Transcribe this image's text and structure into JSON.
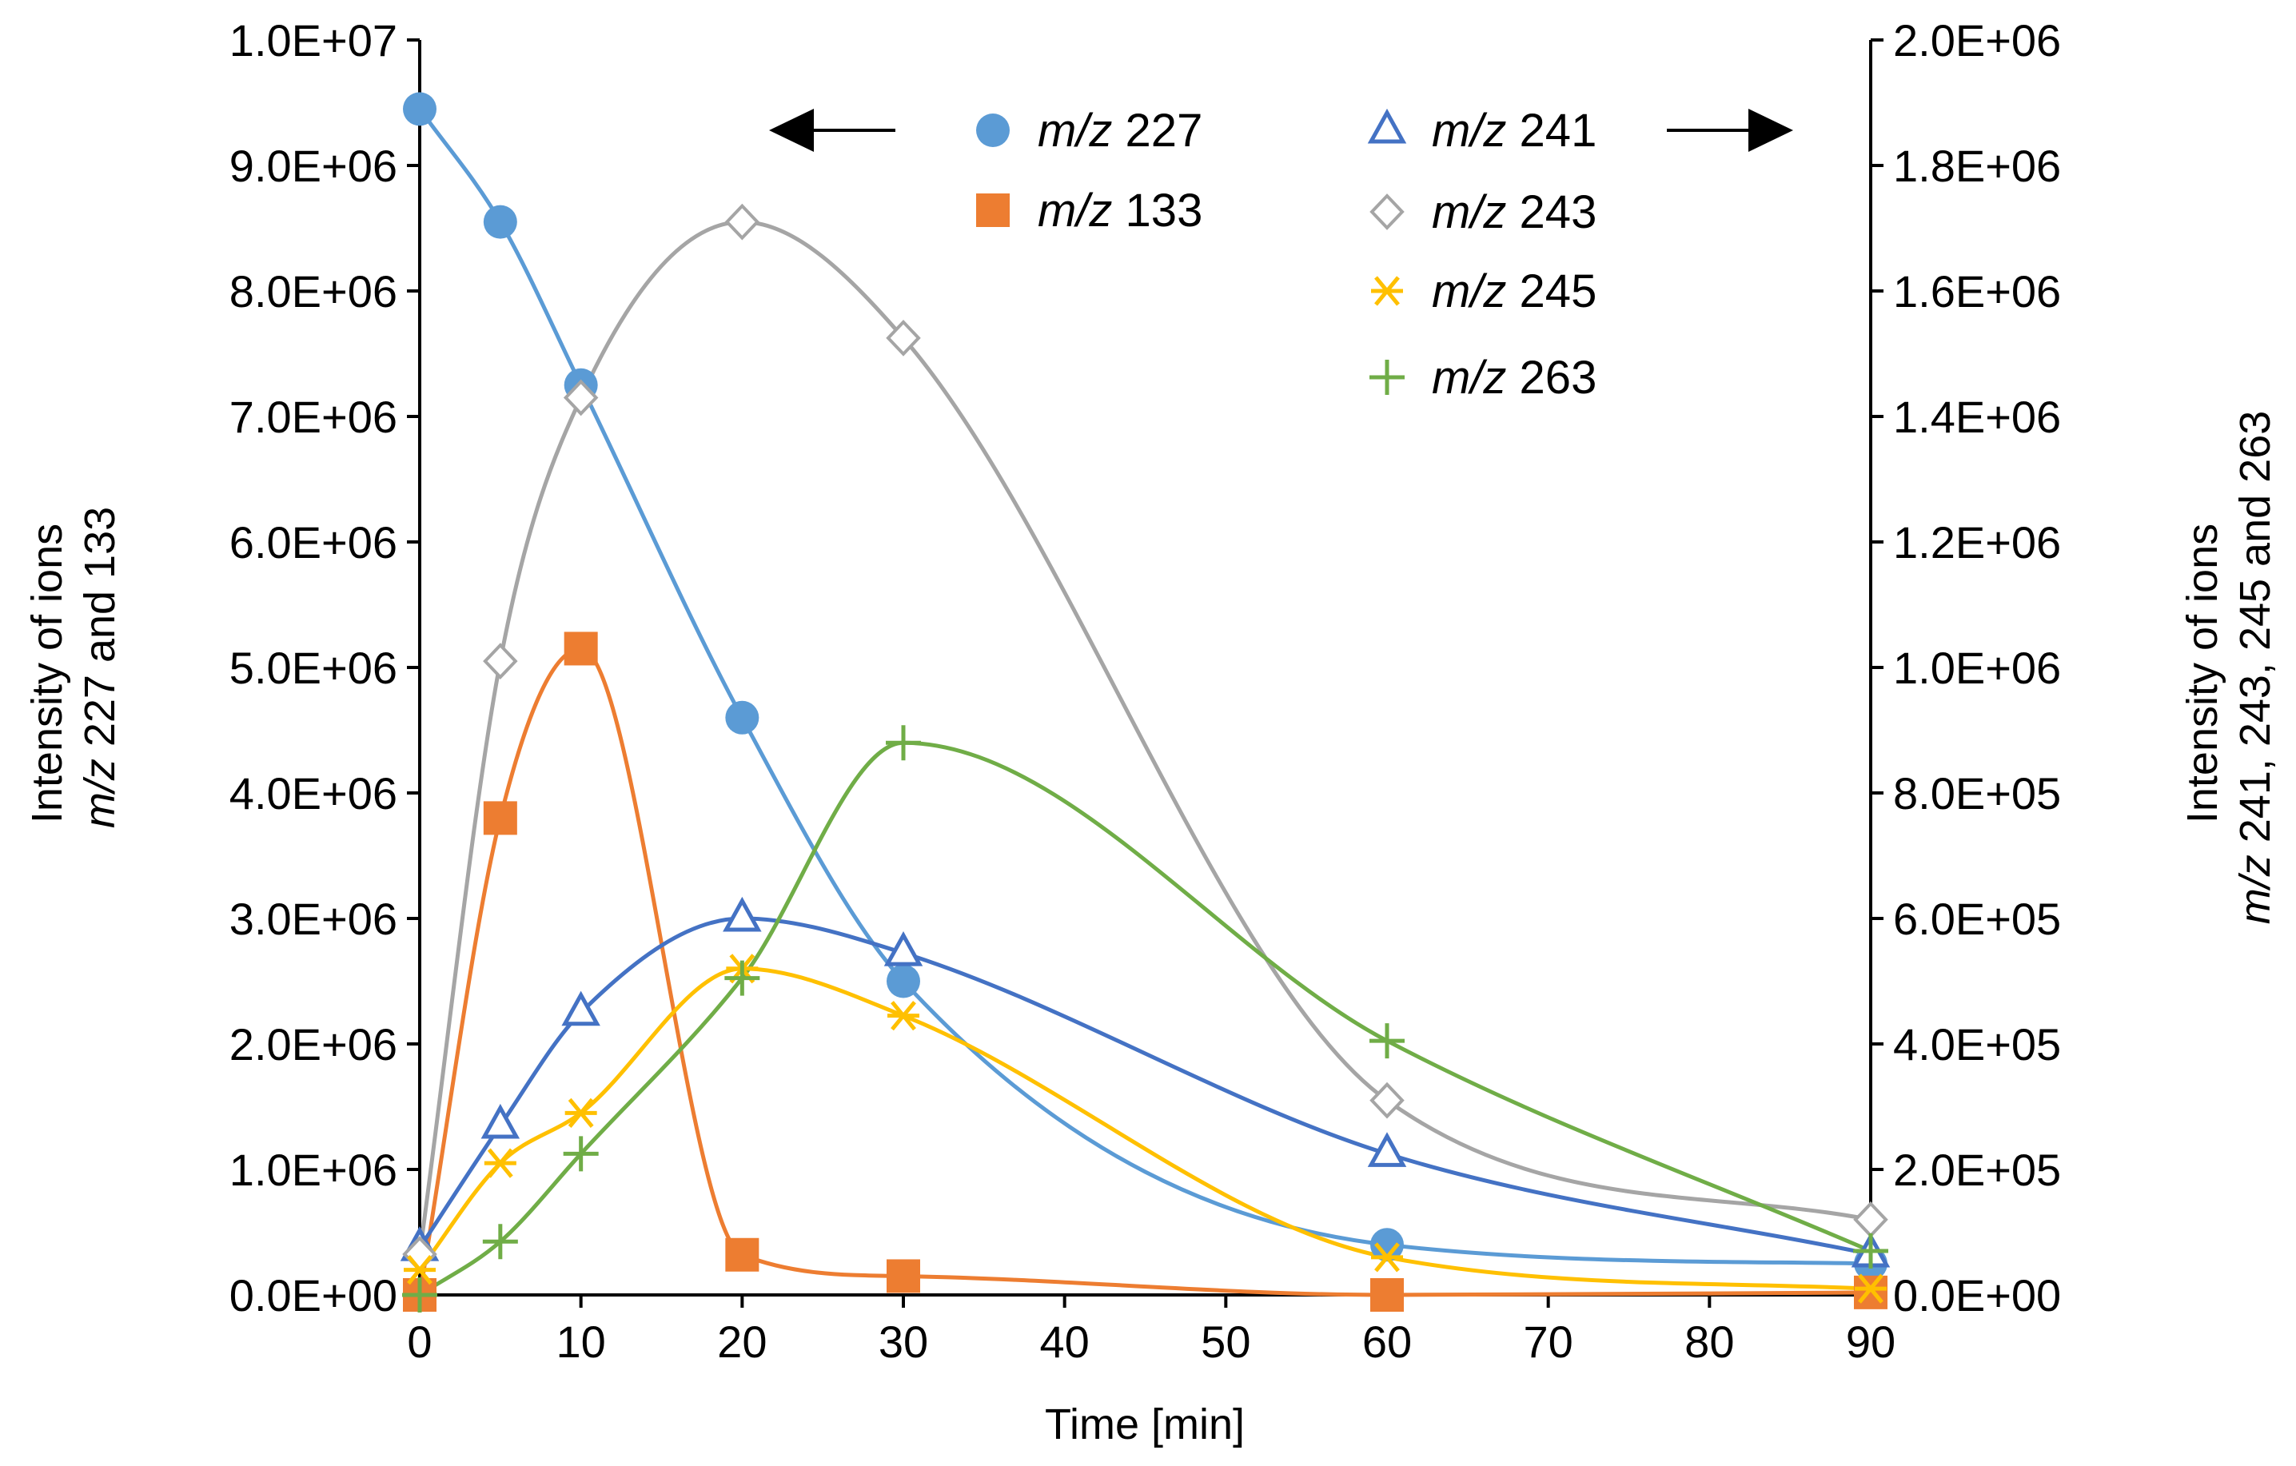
{
  "chart_data": {
    "type": "line",
    "title": "",
    "xlabel": "Time [min]",
    "ylabel_left": {
      "line1": "Intensity of ions",
      "line2_italic": "m/z",
      "line2_rest": " 227 and 133"
    },
    "ylabel_right": {
      "line1": "Intensity of ions",
      "line2_italic": "m/z",
      "line2_rest": " 241, 243, 245 and 263"
    },
    "xlim": [
      0,
      90
    ],
    "ylim_left": [
      0,
      10000000
    ],
    "ylim_right": [
      0,
      2000000
    ],
    "x_ticks": [
      "0",
      "10",
      "20",
      "30",
      "40",
      "50",
      "60",
      "70",
      "80",
      "90"
    ],
    "y_left_ticks": [
      "0.0E+00",
      "1.0E+06",
      "2.0E+06",
      "3.0E+06",
      "4.0E+06",
      "5.0E+06",
      "6.0E+06",
      "7.0E+06",
      "8.0E+06",
      "9.0E+06",
      "1.0E+07"
    ],
    "y_right_ticks": [
      "0.0E+00",
      "2.0E+05",
      "4.0E+05",
      "6.0E+05",
      "8.0E+05",
      "1.0E+06",
      "1.2E+06",
      "1.4E+06",
      "1.6E+06",
      "1.8E+06",
      "2.0E+06"
    ],
    "grid": false,
    "legend_position": "top-center",
    "x": [
      0,
      5,
      10,
      20,
      30,
      60,
      90
    ],
    "series": [
      {
        "name_italic": "m/z",
        "name_rest": " 227",
        "axis": "left",
        "color": "#5B9BD5",
        "marker": "circle",
        "values": [
          9450000,
          8550000,
          7250000,
          4600000,
          2500000,
          400000,
          250000
        ]
      },
      {
        "name_italic": "m/z",
        "name_rest": " 133",
        "axis": "left",
        "color": "#ED7D31",
        "marker": "square",
        "values": [
          0,
          3800000,
          5150000,
          320000,
          150000,
          0,
          20000
        ]
      },
      {
        "name_italic": "m/z",
        "name_rest": " 241",
        "axis": "right",
        "color": "#4472C4",
        "marker": "triangle",
        "values": [
          75000,
          270000,
          450000,
          600000,
          545000,
          225000,
          65000
        ]
      },
      {
        "name_italic": "m/z",
        "name_rest": " 243",
        "axis": "right",
        "color": "#A5A5A5",
        "marker": "diamond",
        "values": [
          65000,
          1010000,
          1430000,
          1710000,
          1525000,
          310000,
          120000
        ]
      },
      {
        "name_italic": "m/z",
        "name_rest": " 245",
        "axis": "right",
        "color": "#FFC000",
        "marker": "asterisk",
        "values": [
          40000,
          210000,
          290000,
          520000,
          445000,
          60000,
          10000
        ]
      },
      {
        "name_italic": "m/z",
        "name_rest": " 263",
        "axis": "right",
        "color": "#70AD47",
        "marker": "plus",
        "values": [
          0,
          85000,
          225000,
          505000,
          880000,
          405000,
          70000
        ]
      }
    ]
  }
}
